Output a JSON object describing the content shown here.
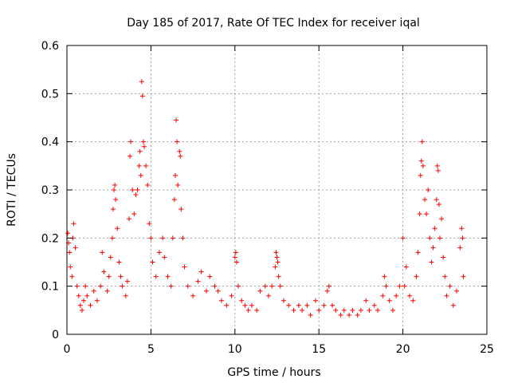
{
  "chart_data": {
    "type": "scatter",
    "title": "Day 185 of 2017, Rate Of TEC Index for receiver iqal",
    "xlabel": "GPS time / hours",
    "ylabel": "ROTI / TECUs",
    "xlim": [
      0,
      25
    ],
    "ylim": [
      0,
      0.6
    ],
    "x_ticks": [
      0,
      5,
      10,
      15,
      20,
      25
    ],
    "y_ticks": [
      0,
      0.1,
      0.2,
      0.3,
      0.4,
      0.5,
      0.6
    ],
    "x_tick_labels": [
      "0",
      "5",
      "10",
      "15",
      "20",
      "25"
    ],
    "y_tick_labels": [
      "0",
      "0.1",
      "0.2",
      "0.3",
      "0.4",
      "0.5",
      "0.6"
    ],
    "grid": true,
    "marker": "+",
    "color": "#ff0000",
    "series": [
      {
        "name": "ROTI",
        "points": [
          [
            0.05,
            0.21
          ],
          [
            0.1,
            0.19
          ],
          [
            0.15,
            0.17
          ],
          [
            0.2,
            0.14
          ],
          [
            0.3,
            0.12
          ],
          [
            0.35,
            0.2
          ],
          [
            0.4,
            0.23
          ],
          [
            0.5,
            0.18
          ],
          [
            0.6,
            0.1
          ],
          [
            0.7,
            0.08
          ],
          [
            0.8,
            0.06
          ],
          [
            0.9,
            0.05
          ],
          [
            1.0,
            0.07
          ],
          [
            1.1,
            0.1
          ],
          [
            1.2,
            0.08
          ],
          [
            1.4,
            0.06
          ],
          [
            1.6,
            0.09
          ],
          [
            1.8,
            0.07
          ],
          [
            2.0,
            0.1
          ],
          [
            2.1,
            0.17
          ],
          [
            2.2,
            0.13
          ],
          [
            2.4,
            0.09
          ],
          [
            2.5,
            0.12
          ],
          [
            2.6,
            0.16
          ],
          [
            2.7,
            0.2
          ],
          [
            2.75,
            0.26
          ],
          [
            2.8,
            0.3
          ],
          [
            2.85,
            0.31
          ],
          [
            2.9,
            0.28
          ],
          [
            3.0,
            0.22
          ],
          [
            3.1,
            0.15
          ],
          [
            3.2,
            0.12
          ],
          [
            3.3,
            0.1
          ],
          [
            3.5,
            0.08
          ],
          [
            3.6,
            0.11
          ],
          [
            3.7,
            0.24
          ],
          [
            3.75,
            0.37
          ],
          [
            3.8,
            0.4
          ],
          [
            3.9,
            0.3
          ],
          [
            4.0,
            0.25
          ],
          [
            4.1,
            0.29
          ],
          [
            4.2,
            0.3
          ],
          [
            4.3,
            0.35
          ],
          [
            4.35,
            0.38
          ],
          [
            4.4,
            0.33
          ],
          [
            4.45,
            0.525
          ],
          [
            4.5,
            0.495
          ],
          [
            4.55,
            0.4
          ],
          [
            4.6,
            0.39
          ],
          [
            4.7,
            0.35
          ],
          [
            4.8,
            0.31
          ],
          [
            4.9,
            0.23
          ],
          [
            5.0,
            0.2
          ],
          [
            5.1,
            0.15
          ],
          [
            5.3,
            0.12
          ],
          [
            5.5,
            0.17
          ],
          [
            5.7,
            0.2
          ],
          [
            5.8,
            0.16
          ],
          [
            6.0,
            0.12
          ],
          [
            6.2,
            0.1
          ],
          [
            6.3,
            0.2
          ],
          [
            6.4,
            0.28
          ],
          [
            6.45,
            0.33
          ],
          [
            6.5,
            0.445
          ],
          [
            6.55,
            0.4
          ],
          [
            6.6,
            0.31
          ],
          [
            6.7,
            0.38
          ],
          [
            6.75,
            0.37
          ],
          [
            6.8,
            0.26
          ],
          [
            6.9,
            0.2
          ],
          [
            7.0,
            0.14
          ],
          [
            7.2,
            0.1
          ],
          [
            7.5,
            0.08
          ],
          [
            7.8,
            0.11
          ],
          [
            8.0,
            0.13
          ],
          [
            8.3,
            0.09
          ],
          [
            8.5,
            0.12
          ],
          [
            8.8,
            0.1
          ],
          [
            9.0,
            0.09
          ],
          [
            9.2,
            0.07
          ],
          [
            9.5,
            0.06
          ],
          [
            9.8,
            0.08
          ],
          [
            10.0,
            0.16
          ],
          [
            10.05,
            0.17
          ],
          [
            10.1,
            0.15
          ],
          [
            10.2,
            0.1
          ],
          [
            10.4,
            0.07
          ],
          [
            10.6,
            0.06
          ],
          [
            10.8,
            0.05
          ],
          [
            11.0,
            0.06
          ],
          [
            11.3,
            0.05
          ],
          [
            11.5,
            0.09
          ],
          [
            11.8,
            0.1
          ],
          [
            12.0,
            0.08
          ],
          [
            12.2,
            0.1
          ],
          [
            12.4,
            0.14
          ],
          [
            12.45,
            0.17
          ],
          [
            12.5,
            0.16
          ],
          [
            12.55,
            0.15
          ],
          [
            12.6,
            0.12
          ],
          [
            12.7,
            0.1
          ],
          [
            12.9,
            0.07
          ],
          [
            13.2,
            0.06
          ],
          [
            13.5,
            0.05
          ],
          [
            13.8,
            0.06
          ],
          [
            14.0,
            0.05
          ],
          [
            14.3,
            0.06
          ],
          [
            14.5,
            0.04
          ],
          [
            14.8,
            0.07
          ],
          [
            15.0,
            0.05
          ],
          [
            15.3,
            0.06
          ],
          [
            15.5,
            0.09
          ],
          [
            15.6,
            0.1
          ],
          [
            15.8,
            0.06
          ],
          [
            16.0,
            0.05
          ],
          [
            16.3,
            0.04
          ],
          [
            16.5,
            0.05
          ],
          [
            16.8,
            0.04
          ],
          [
            17.0,
            0.05
          ],
          [
            17.3,
            0.04
          ],
          [
            17.5,
            0.05
          ],
          [
            17.8,
            0.07
          ],
          [
            18.0,
            0.05
          ],
          [
            18.3,
            0.06
          ],
          [
            18.5,
            0.05
          ],
          [
            18.8,
            0.08
          ],
          [
            18.9,
            0.12
          ],
          [
            19.0,
            0.1
          ],
          [
            19.2,
            0.07
          ],
          [
            19.4,
            0.05
          ],
          [
            19.6,
            0.08
          ],
          [
            19.8,
            0.1
          ],
          [
            20.0,
            0.2
          ],
          [
            20.1,
            0.1
          ],
          [
            20.2,
            0.14
          ],
          [
            20.4,
            0.08
          ],
          [
            20.6,
            0.07
          ],
          [
            20.8,
            0.12
          ],
          [
            20.9,
            0.17
          ],
          [
            21.0,
            0.25
          ],
          [
            21.05,
            0.33
          ],
          [
            21.1,
            0.36
          ],
          [
            21.15,
            0.4
          ],
          [
            21.2,
            0.35
          ],
          [
            21.3,
            0.28
          ],
          [
            21.4,
            0.25
          ],
          [
            21.5,
            0.3
          ],
          [
            21.6,
            0.2
          ],
          [
            21.7,
            0.15
          ],
          [
            21.8,
            0.18
          ],
          [
            21.9,
            0.22
          ],
          [
            22.0,
            0.28
          ],
          [
            22.05,
            0.35
          ],
          [
            22.1,
            0.34
          ],
          [
            22.15,
            0.27
          ],
          [
            22.2,
            0.2
          ],
          [
            22.3,
            0.24
          ],
          [
            22.4,
            0.16
          ],
          [
            22.5,
            0.12
          ],
          [
            22.6,
            0.08
          ],
          [
            22.8,
            0.1
          ],
          [
            23.0,
            0.06
          ],
          [
            23.2,
            0.09
          ],
          [
            23.4,
            0.18
          ],
          [
            23.5,
            0.22
          ],
          [
            23.55,
            0.2
          ],
          [
            23.6,
            0.12
          ]
        ]
      }
    ]
  }
}
